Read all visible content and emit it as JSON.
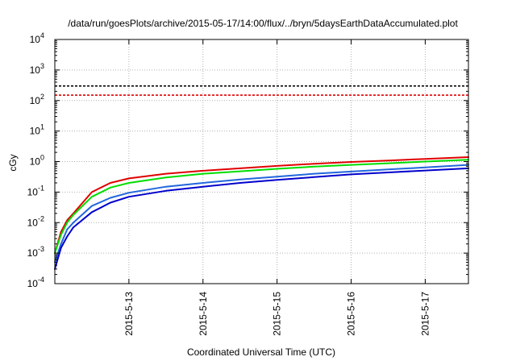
{
  "chart_data": {
    "type": "line",
    "title": "/data/run/goesPlots/archive/2015-05-17/14:00/flux/../bryn/5daysEarthDataAccumulated.plot",
    "xlabel": "Coordinated Universal Time (UTC)",
    "ylabel": "cGy",
    "y_scale": "log",
    "ylim": [
      0.0001,
      10000
    ],
    "xlim": [
      "2015-05-12 00:00",
      "2015-05-17 14:00"
    ],
    "grid": true,
    "x_ticks": [
      "2015-5-13",
      "2015-5-14",
      "2015-5-15",
      "2015-5-16",
      "2015-5-17"
    ],
    "y_ticks": [
      {
        "value": 0.0001,
        "base": "10",
        "exp": "-4"
      },
      {
        "value": 0.001,
        "base": "10",
        "exp": "-3"
      },
      {
        "value": 0.01,
        "base": "10",
        "exp": "-2"
      },
      {
        "value": 0.1,
        "base": "10",
        "exp": "-1"
      },
      {
        "value": 1,
        "base": "10",
        "exp": "0"
      },
      {
        "value": 10,
        "base": "10",
        "exp": "1"
      },
      {
        "value": 100,
        "base": "10",
        "exp": "2"
      },
      {
        "value": 1000,
        "base": "10",
        "exp": "3"
      },
      {
        "value": 10000,
        "base": "10",
        "exp": "4"
      }
    ],
    "reference_lines": [
      {
        "value": 300,
        "color": "#000000",
        "style": "dashed"
      },
      {
        "value": 150,
        "color": "#e00000",
        "style": "dashed"
      }
    ],
    "series": [
      {
        "color": "#e00000",
        "x": [
          "2015-05-12 00:00",
          "2015-05-12 02:00",
          "2015-05-12 04:00",
          "2015-05-12 06:00",
          "2015-05-12 12:00",
          "2015-05-12 18:00",
          "2015-05-13 00:00",
          "2015-05-13 12:00",
          "2015-05-14 00:00",
          "2015-05-14 12:00",
          "2015-05-15 00:00",
          "2015-05-15 12:00",
          "2015-05-16 00:00",
          "2015-05-16 12:00",
          "2015-05-17 00:00",
          "2015-05-17 14:00"
        ],
        "y": [
          0.001,
          0.005,
          0.012,
          0.02,
          0.1,
          0.2,
          0.28,
          0.4,
          0.5,
          0.6,
          0.72,
          0.85,
          0.97,
          1.08,
          1.22,
          1.4
        ]
      },
      {
        "color": "#00dd00",
        "x": [
          "2015-05-12 00:00",
          "2015-05-12 02:00",
          "2015-05-12 04:00",
          "2015-05-12 06:00",
          "2015-05-12 12:00",
          "2015-05-12 18:00",
          "2015-05-13 00:00",
          "2015-05-13 12:00",
          "2015-05-14 00:00",
          "2015-05-14 12:00",
          "2015-05-15 00:00",
          "2015-05-15 12:00",
          "2015-05-16 00:00",
          "2015-05-16 12:00",
          "2015-05-17 00:00",
          "2015-05-17 14:00"
        ],
        "y": [
          0.001,
          0.004,
          0.01,
          0.018,
          0.07,
          0.14,
          0.2,
          0.3,
          0.4,
          0.48,
          0.58,
          0.68,
          0.78,
          0.88,
          1.0,
          1.15
        ]
      },
      {
        "color": "#2266dd",
        "x": [
          "2015-05-12 00:00",
          "2015-05-12 02:00",
          "2015-05-12 04:00",
          "2015-05-12 06:00",
          "2015-05-12 12:00",
          "2015-05-12 18:00",
          "2015-05-13 00:00",
          "2015-05-13 12:00",
          "2015-05-14 00:00",
          "2015-05-14 12:00",
          "2015-05-15 00:00",
          "2015-05-15 12:00",
          "2015-05-16 00:00",
          "2015-05-16 12:00",
          "2015-05-17 00:00",
          "2015-05-17 14:00"
        ],
        "y": [
          0.0005,
          0.002,
          0.006,
          0.01,
          0.035,
          0.065,
          0.095,
          0.15,
          0.2,
          0.26,
          0.32,
          0.4,
          0.47,
          0.55,
          0.64,
          0.78
        ]
      },
      {
        "color": "#0000cc",
        "x": [
          "2015-05-12 00:00",
          "2015-05-12 02:00",
          "2015-05-12 04:00",
          "2015-05-12 06:00",
          "2015-05-12 12:00",
          "2015-05-12 18:00",
          "2015-05-13 00:00",
          "2015-05-13 12:00",
          "2015-05-14 00:00",
          "2015-05-14 12:00",
          "2015-05-15 00:00",
          "2015-05-15 12:00",
          "2015-05-16 00:00",
          "2015-05-16 12:00",
          "2015-05-17 00:00",
          "2015-05-17 14:00"
        ],
        "y": [
          0.0003,
          0.0015,
          0.0035,
          0.007,
          0.022,
          0.045,
          0.07,
          0.11,
          0.15,
          0.2,
          0.25,
          0.31,
          0.38,
          0.44,
          0.51,
          0.6
        ]
      }
    ]
  }
}
